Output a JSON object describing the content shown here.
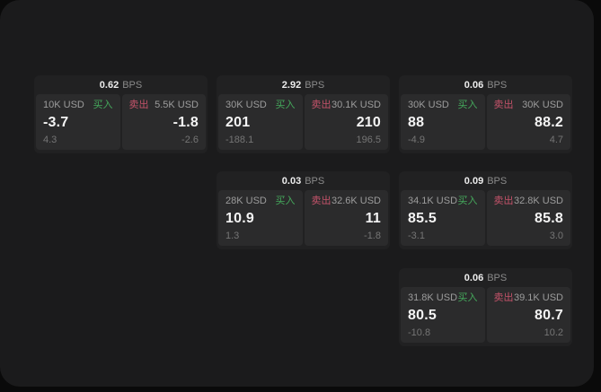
{
  "labels": {
    "bps_suffix": "BPS",
    "buy": "买入",
    "sell": "卖出"
  },
  "colors": {
    "buy": "#45a95c",
    "sell": "#c4536a",
    "background": "#0a0a0a",
    "surface": "#1b1b1c",
    "card": "#212122",
    "panel": "#2b2b2c"
  },
  "cards": [
    {
      "bps": "0.62",
      "buy": {
        "amount": "10K USD",
        "value": "-3.7",
        "delta": "4.3"
      },
      "sell": {
        "amount": "5.5K USD",
        "value": "-1.8",
        "delta": "-2.6"
      }
    },
    {
      "bps": "2.92",
      "buy": {
        "amount": "30K USD",
        "value": "201",
        "delta": "-188.1"
      },
      "sell": {
        "amount": "30.1K USD",
        "value": "210",
        "delta": "196.5"
      }
    },
    {
      "bps": "0.06",
      "buy": {
        "amount": "30K USD",
        "value": "88",
        "delta": "-4.9"
      },
      "sell": {
        "amount": "30K USD",
        "value": "88.2",
        "delta": "4.7"
      }
    },
    {
      "bps": "0.03",
      "buy": {
        "amount": "28K USD",
        "value": "10.9",
        "delta": "1.3"
      },
      "sell": {
        "amount": "32.6K USD",
        "value": "11",
        "delta": "-1.8"
      }
    },
    {
      "bps": "0.09",
      "buy": {
        "amount": "34.1K USD",
        "value": "85.5",
        "delta": "-3.1"
      },
      "sell": {
        "amount": "32.8K USD",
        "value": "85.8",
        "delta": "3.0"
      }
    },
    {
      "bps": "0.06",
      "buy": {
        "amount": "31.8K USD",
        "value": "80.5",
        "delta": "-10.8"
      },
      "sell": {
        "amount": "39.1K USD",
        "value": "80.7",
        "delta": "10.2"
      }
    }
  ]
}
